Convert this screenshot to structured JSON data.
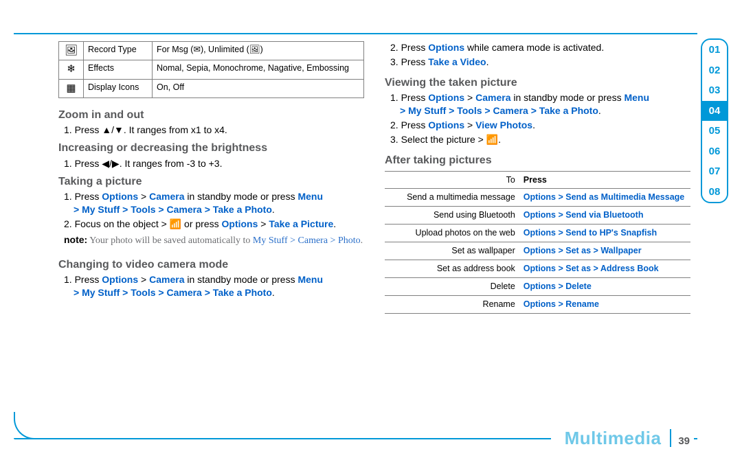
{
  "colors": {
    "rule": "#0098d8",
    "heading": "#58595b",
    "link": "#0060c8",
    "tab_border": "#0098d8",
    "footer_title": "#6fc8e8",
    "table_border": "#808080"
  },
  "settings_table": {
    "rows": [
      {
        "icon": "🖼",
        "label": "Record Type",
        "value": "For Msg (✉), Unlimited (🖼)"
      },
      {
        "icon": "❄",
        "label": "Effects",
        "value": "Nomal, Sepia, Monochrome, Nagative, Embossing"
      },
      {
        "icon": "▦",
        "label": "Display Icons",
        "value": "On, Off"
      }
    ]
  },
  "left": {
    "zoom": {
      "title": "Zoom in and out",
      "s1a": "1. Press ",
      "s1b": ". It ranges from x1 to x4."
    },
    "bright": {
      "title": "Increasing or decreasing the brightness",
      "s1a": "1. Press ",
      "s1b": ". It ranges from -3 to +3."
    },
    "take": {
      "title": "Taking a picture",
      "p1a": "1. Press ",
      "opt": "Options",
      "gt1": " > ",
      "cam": "Camera",
      "p1b": " in standby mode or press ",
      "menu": "Menu",
      "path": "> My Stuff > Tools > Camera > Take a Photo",
      "p2a": "2. Focus on the object > ",
      "p2b": " or press ",
      "opt2": "Options",
      "gt2": " > ",
      "tp": "Take a Picture",
      "note_label": "note:",
      "note_body": " Your photo will be saved automatically to ",
      "note_path1": "My Stuff > Camera > Photo",
      "note_dot": "."
    },
    "video": {
      "title": "Changing to video camera mode",
      "p1a": "1. Press ",
      "opt": "Options",
      "gt1": " > ",
      "cam": "Camera",
      "p1b": " in standby mode or press ",
      "menu": "Menu",
      "path": "> My Stuff > Tools > Camera > Take a Photo"
    }
  },
  "right": {
    "pre": {
      "p2a": "2. Press ",
      "opt": "Options",
      "p2b": " while camera mode is activated.",
      "p3a": "3. Press ",
      "tv": "Take a Video",
      "dot": "."
    },
    "view": {
      "title": "Viewing the taken picture",
      "p1a": "1. Press ",
      "opt": "Options",
      "gt1": " > ",
      "cam": "Camera",
      "p1b": " in standby mode or press ",
      "menu": "Menu",
      "path": "> My Stuff > Tools > Camera > Take a Photo",
      "p2a": "2. Press ",
      "opt2": "Options",
      "gt2": " > ",
      "vp": "View Photos",
      "dot2": ".",
      "p3": "3. Select the picture > "
    },
    "after": {
      "title": "After taking pictures"
    },
    "action_table": {
      "head_to": "To",
      "head_press": "Press",
      "rows": [
        {
          "to": "Send a multimedia message",
          "press": "Options > Send as Multimedia Message"
        },
        {
          "to": "Send using Bluetooth",
          "press": "Options > Send via Bluetooth"
        },
        {
          "to": "Upload photos on the web",
          "press": "Options > Send to HP's Snapfish"
        },
        {
          "to": "Set as wallpaper",
          "press_parts": [
            "Options > Set as > ",
            "Wallpaper"
          ]
        },
        {
          "to": "Set as address book",
          "press_parts": [
            "Options > Set as > ",
            "Address Book"
          ]
        },
        {
          "to": "Delete",
          "press": "Options > Delete"
        },
        {
          "to": "Rename",
          "press": "Options > Rename"
        }
      ]
    }
  },
  "tabs": {
    "items": [
      "01",
      "02",
      "03",
      "04",
      "05",
      "06",
      "07",
      "08"
    ],
    "active_index": 3
  },
  "footer": {
    "title": "Multimedia",
    "page": "39"
  },
  "glyphs": {
    "updown": "▲/▼",
    "leftright": "◀/▶",
    "wifi": "📶"
  }
}
